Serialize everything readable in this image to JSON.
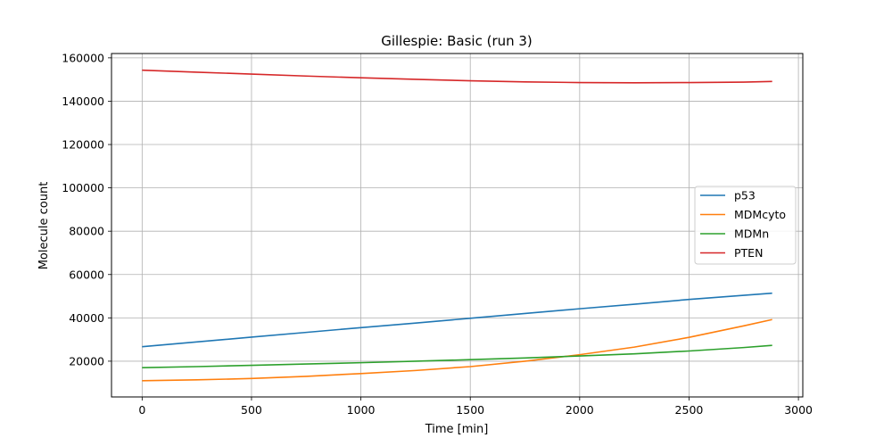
{
  "chart_data": {
    "type": "line",
    "title": "Gillespie: Basic (run 3)",
    "xlabel": "Time [min]",
    "ylabel": "Molecule count",
    "xlim": [
      -140,
      3020
    ],
    "ylim": [
      3500,
      162000
    ],
    "xticks": [
      0,
      500,
      1000,
      1500,
      2000,
      2500,
      3000
    ],
    "yticks": [
      20000,
      40000,
      60000,
      80000,
      100000,
      120000,
      140000,
      160000
    ],
    "xtick_labels": [
      "0",
      "500",
      "1000",
      "1500",
      "2000",
      "2500",
      "3000"
    ],
    "ytick_labels": [
      "20000",
      "40000",
      "60000",
      "80000",
      "100000",
      "120000",
      "140000",
      "160000"
    ],
    "grid": true,
    "legend_position": "center-right",
    "x": [
      0,
      250,
      500,
      750,
      1000,
      1250,
      1500,
      1750,
      2000,
      2250,
      2500,
      2750,
      2880
    ],
    "series": [
      {
        "name": "p53",
        "color": "#1f77b4",
        "values": [
          26700,
          28900,
          31100,
          33300,
          35500,
          37600,
          39800,
          42000,
          44200,
          46300,
          48500,
          50400,
          51400
        ]
      },
      {
        "name": "MDMcyto",
        "color": "#ff7f0e",
        "values": [
          11000,
          11400,
          12000,
          13000,
          14300,
          15700,
          17500,
          20000,
          23000,
          26500,
          31000,
          36300,
          39200
        ]
      },
      {
        "name": "MDMn",
        "color": "#2ca02c",
        "values": [
          17000,
          17500,
          18100,
          18700,
          19300,
          20000,
          20700,
          21500,
          22400,
          23400,
          24700,
          26300,
          27300
        ]
      },
      {
        "name": "PTEN",
        "color": "#d62728",
        "values": [
          154300,
          153400,
          152500,
          151600,
          150800,
          150100,
          149400,
          148900,
          148600,
          148500,
          148600,
          148800,
          149100
        ]
      }
    ]
  }
}
